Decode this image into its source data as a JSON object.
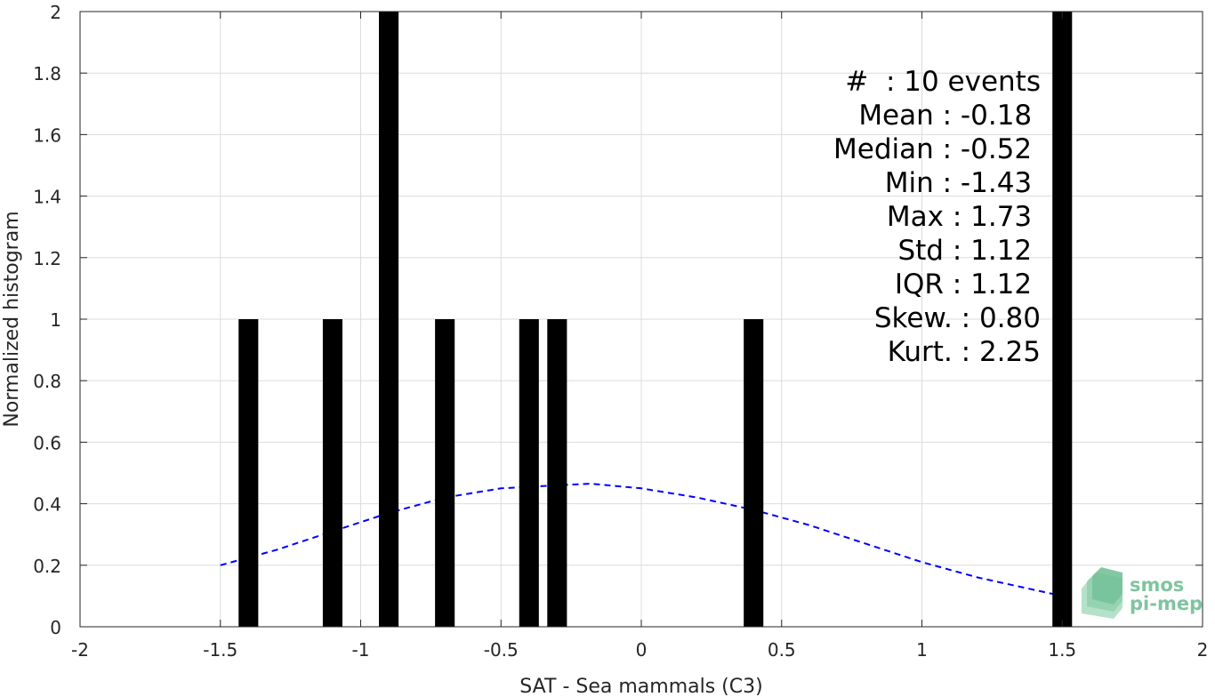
{
  "chart_data": {
    "type": "bar",
    "xlabel": "SAT - Sea mammals (C3)",
    "ylabel": "Normalized histogram",
    "xlim": [
      -2,
      2
    ],
    "ylim": [
      0,
      2
    ],
    "grid": true,
    "x_ticks": [
      "-2",
      "-1.5",
      "-1",
      "-0.5",
      "0",
      "0.5",
      "1",
      "1.5",
      "2"
    ],
    "y_ticks": [
      "0",
      "0.2",
      "0.4",
      "0.6",
      "0.8",
      "1",
      "1.2",
      "1.4",
      "1.6",
      "1.8",
      "2"
    ],
    "bars": [
      {
        "x": -1.4,
        "value": 1
      },
      {
        "x": -1.1,
        "value": 1
      },
      {
        "x": -0.9,
        "value": 2
      },
      {
        "x": -0.7,
        "value": 1
      },
      {
        "x": -0.4,
        "value": 1
      },
      {
        "x": -0.3,
        "value": 1
      },
      {
        "x": 0.4,
        "value": 1
      },
      {
        "x": 1.5,
        "value": 2
      }
    ],
    "fit_curve": {
      "style": "dashed",
      "color": "#0000ff",
      "points": [
        [
          -1.5,
          0.2
        ],
        [
          -1.3,
          0.25
        ],
        [
          -1.1,
          0.31
        ],
        [
          -0.9,
          0.37
        ],
        [
          -0.7,
          0.42
        ],
        [
          -0.5,
          0.45
        ],
        [
          -0.3,
          0.46
        ],
        [
          -0.18,
          0.465
        ],
        [
          0.0,
          0.45
        ],
        [
          0.2,
          0.42
        ],
        [
          0.4,
          0.38
        ],
        [
          0.6,
          0.33
        ],
        [
          0.8,
          0.27
        ],
        [
          1.0,
          0.21
        ],
        [
          1.2,
          0.16
        ],
        [
          1.4,
          0.12
        ],
        [
          1.5,
          0.1
        ]
      ]
    },
    "stats": [
      "#  : 10 events",
      "Mean : -0.18 ",
      "Median : -0.52 ",
      "Min : -1.43 ",
      "Max : 1.73 ",
      "Std : 1.12 ",
      "IQR : 1.12 ",
      "Skew. : 0.80",
      "Kurt. : 2.25"
    ],
    "bar_color": "#000000",
    "grid_color": "#dcdcdc",
    "logo": {
      "line1": "smos",
      "line2": "pi-mep",
      "color": "#7fc4a0"
    }
  }
}
